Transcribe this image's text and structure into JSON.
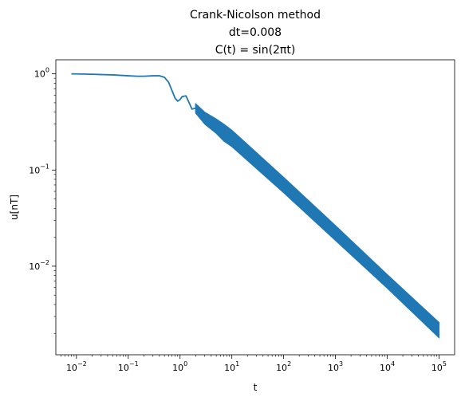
{
  "chart_data": {
    "type": "line",
    "title_lines": [
      "Crank-Nicolson method",
      "dt=0.008",
      "C(t) = sin(2πt)"
    ],
    "xlabel": "t",
    "ylabel": "u[nT]",
    "xscale": "log",
    "yscale": "log",
    "xlim": [
      0.004,
      200000
    ],
    "ylim": [
      0.0012,
      1.4
    ],
    "grid": false,
    "series_color": "#1f77b4",
    "x_ticks": [
      {
        "value": 0.01,
        "base": "10",
        "exp": "−2"
      },
      {
        "value": 0.1,
        "base": "10",
        "exp": "−1"
      },
      {
        "value": 1,
        "base": "10",
        "exp": "0"
      },
      {
        "value": 10,
        "base": "10",
        "exp": "1"
      },
      {
        "value": 100,
        "base": "10",
        "exp": "2"
      },
      {
        "value": 1000,
        "base": "10",
        "exp": "3"
      },
      {
        "value": 10000,
        "base": "10",
        "exp": "4"
      },
      {
        "value": 100000,
        "base": "10",
        "exp": "5"
      }
    ],
    "y_ticks": [
      {
        "value": 0.01,
        "base": "10",
        "exp": "−2"
      },
      {
        "value": 0.1,
        "base": "10",
        "exp": "−1"
      },
      {
        "value": 1,
        "base": "10",
        "exp": "0"
      }
    ],
    "series": [
      {
        "description": "early smooth segment",
        "x": [
          0.008,
          0.02,
          0.05,
          0.1,
          0.15,
          0.2,
          0.3,
          0.4,
          0.5,
          0.6,
          0.7,
          0.8,
          0.9,
          1.0,
          1.1,
          1.3,
          1.5,
          1.7,
          2.0
        ],
        "y": [
          1.0,
          0.99,
          0.975,
          0.955,
          0.945,
          0.945,
          0.955,
          0.955,
          0.92,
          0.82,
          0.67,
          0.56,
          0.52,
          0.54,
          0.58,
          0.59,
          0.5,
          0.43,
          0.44
        ]
      },
      {
        "description": "oscillation envelope (upper / lower bounds)",
        "x": [
          2.0,
          3.0,
          5.0,
          7.0,
          10,
          100,
          1000,
          10000,
          100000
        ],
        "y_upper": [
          0.49,
          0.4,
          0.34,
          0.3,
          0.26,
          0.084,
          0.0265,
          0.0082,
          0.0026
        ],
        "y_lower": [
          0.39,
          0.3,
          0.24,
          0.2,
          0.175,
          0.058,
          0.0185,
          0.0059,
          0.0018
        ]
      }
    ]
  }
}
